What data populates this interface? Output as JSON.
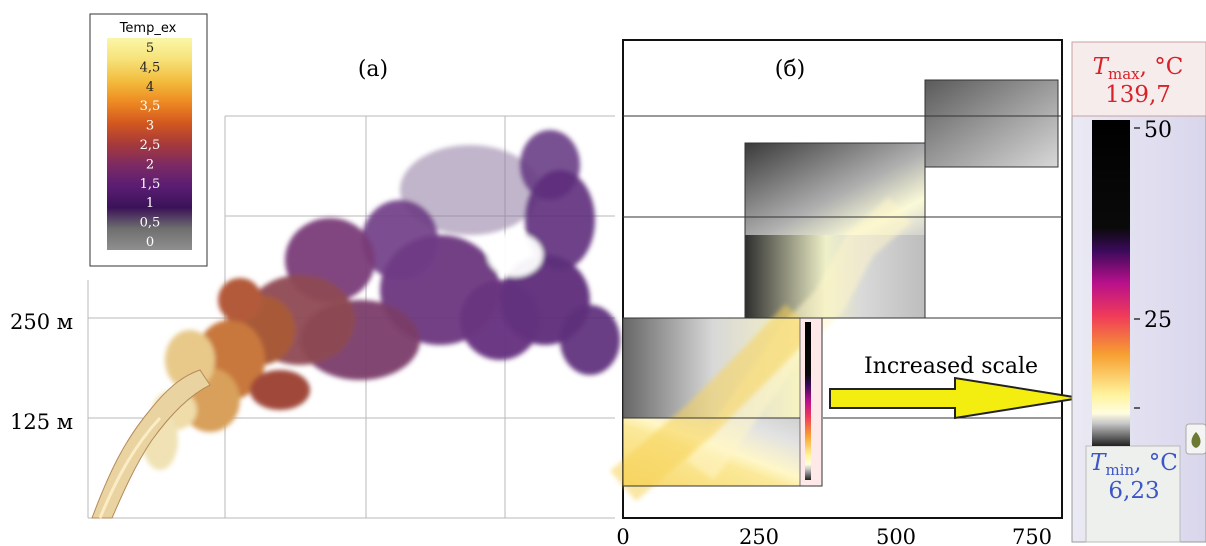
{
  "panel_a": {
    "label": "(a)",
    "legend": {
      "title": "Temp_ex",
      "entries": [
        "5",
        "4,5",
        "4",
        "3,5",
        "3",
        "2,5",
        "2",
        "1,5",
        "1",
        "0,5",
        "0"
      ],
      "entry_colors": [
        "#222222",
        "#222222",
        "#222222",
        "#ffffff",
        "#ffffff",
        "#ffffff",
        "#ffffff",
        "#ffffff",
        "#ffffff",
        "#ffffff",
        "#ffffff"
      ],
      "gradient": [
        "#fbf7a8",
        "#f6e27a",
        "#f2be3f",
        "#ee8b22",
        "#d4581f",
        "#a63a3a",
        "#7c2a63",
        "#5a1d73",
        "#3b1258",
        "#6f6f6f",
        "#8f8f8f"
      ]
    },
    "y_labels": [
      "250 м",
      "125 м"
    ]
  },
  "panel_b": {
    "label": "(б)",
    "x_ticks": [
      "0",
      "250",
      "500",
      "750"
    ]
  },
  "annotation": {
    "text": "Increased scale",
    "arrow_color": "#f3ee10"
  },
  "colorbar": {
    "tmax_symbol": "T",
    "tmax_sub": "max",
    "tmax_unit": ", °C",
    "tmax_value": "139,7",
    "tmin_symbol": "T",
    "tmin_sub": "min",
    "tmin_unit": ", °C",
    "tmin_value": "6,23",
    "ticks": [
      "50",
      "25"
    ],
    "tmax_color": "#d8222a",
    "tmin_color": "#3c56c8"
  }
}
